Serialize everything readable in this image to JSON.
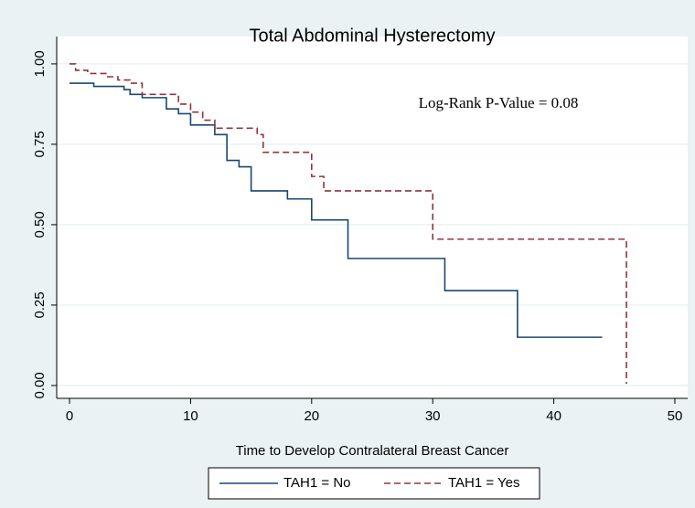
{
  "chart_data": {
    "type": "step",
    "title": "Total Abdominal Hysterectomy",
    "annotation": "Log-Rank P-Value = 0.08",
    "x_label": "Time to Develop Contralateral Breast Cancer",
    "xlim": [
      -1.06,
      51.06
    ],
    "ylim": [
      -0.04,
      1.085
    ],
    "xticks": [
      0,
      10,
      20,
      30,
      40,
      50
    ],
    "yticks": [
      {
        "value": 0,
        "label": "0.00"
      },
      {
        "value": 0.25,
        "label": "0.25"
      },
      {
        "value": 0.5,
        "label": "0.50"
      },
      {
        "value": 0.75,
        "label": "0.75"
      },
      {
        "value": 1,
        "label": "1.00"
      }
    ],
    "grid": true,
    "series": [
      {
        "name": "TAH1 = No",
        "color": "#1a476f",
        "dash": "solid",
        "x": [
          0,
          2,
          4.5,
          5,
          6,
          8,
          9,
          10,
          12,
          13,
          14,
          15,
          18,
          20,
          23,
          31,
          37,
          44
        ],
        "values": [
          0.94,
          0.93,
          0.92,
          0.905,
          0.895,
          0.86,
          0.845,
          0.81,
          0.78,
          0.7,
          0.68,
          0.605,
          0.58,
          0.515,
          0.395,
          0.295,
          0.15,
          0.15
        ]
      },
      {
        "name": "TAH1 = Yes",
        "color": "#90353b",
        "dash": "dashed",
        "x": [
          0,
          0.5,
          1.5,
          3,
          4,
          5,
          6,
          9,
          10,
          11,
          12,
          15.5,
          16,
          20,
          21,
          30,
          46
        ],
        "values": [
          1,
          0.98,
          0.97,
          0.96,
          0.95,
          0.94,
          0.905,
          0.875,
          0.85,
          0.825,
          0.8,
          0.78,
          0.725,
          0.65,
          0.605,
          0.455,
          0.005
        ]
      }
    ]
  }
}
